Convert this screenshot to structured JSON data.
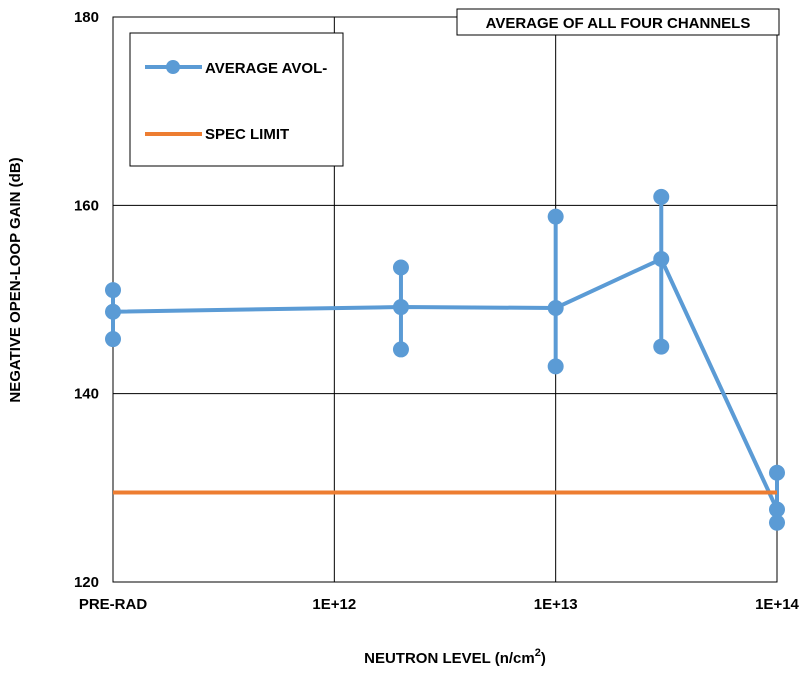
{
  "chart_data": {
    "type": "line",
    "title": "",
    "annotation": "AVERAGE OF ALL FOUR CHANNELS",
    "xlabel": "NEUTRON LEVEL (n/cm",
    "xlabel_superscript": "2",
    "xlabel_suffix": ")",
    "ylabel": "NEGATIVE OPEN-LOOP GAIN (dB)",
    "x_tick_labels": [
      "PRE-RAD",
      "1E+12",
      "1E+13",
      "1E+14"
    ],
    "y_ticks": [
      120,
      140,
      160,
      180
    ],
    "ylim": [
      120,
      180
    ],
    "x_scale": "log",
    "grid": true,
    "legend": {
      "placement": "top-left",
      "entries": [
        "AVERAGE AVOL-",
        "SPEC LIMIT"
      ]
    },
    "series": [
      {
        "name": "AVERAGE AVOL-",
        "color": "#5B9BD5",
        "marker": "circle",
        "points": [
          {
            "x": "PRE-RAD",
            "y": 148.7,
            "y_max": 151.0,
            "y_min": 145.8
          },
          {
            "x": "2E+12",
            "y": 149.2,
            "y_max": 153.4,
            "y_min": 144.7
          },
          {
            "x": "1E+13",
            "y": 149.1,
            "y_max": 158.8,
            "y_min": 142.9
          },
          {
            "x": "3E+13",
            "y": 154.3,
            "y_max": 160.9,
            "y_min": 145.0
          },
          {
            "x": "1E+14",
            "y": 127.7,
            "y_max": 131.6,
            "y_min": 126.3
          }
        ]
      },
      {
        "name": "SPEC LIMIT",
        "color": "#ED7D31",
        "marker": "none",
        "points": [
          {
            "x": "PRE-RAD",
            "y": 129.5
          },
          {
            "x": "1E+14",
            "y": 129.5
          }
        ]
      }
    ]
  }
}
